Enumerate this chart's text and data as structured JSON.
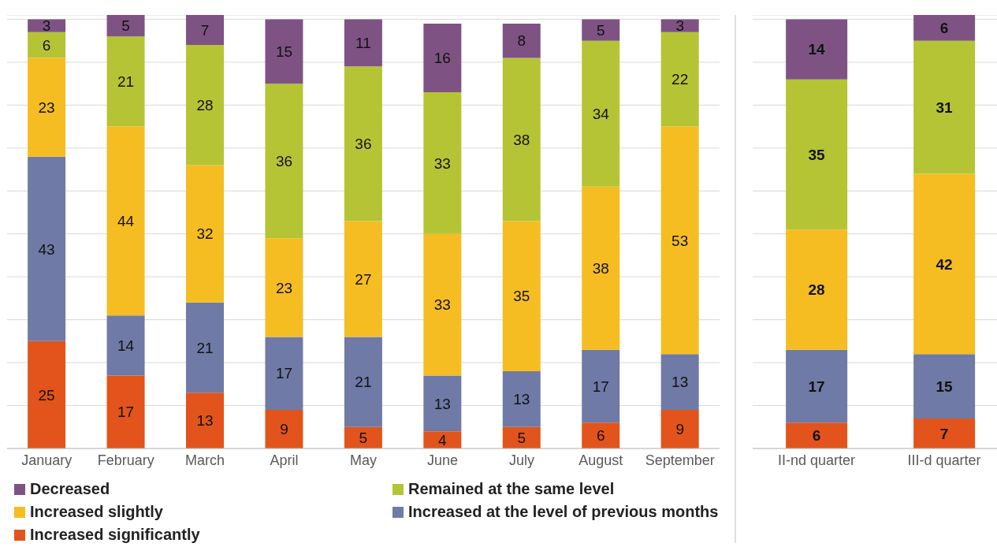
{
  "chart_data": [
    {
      "type": "bar",
      "stacked": true,
      "data_labels": true,
      "grid": "y",
      "legend": "bottom",
      "tick_labels": "x",
      "categories": [
        "January",
        "February",
        "March",
        "April",
        "May",
        "June",
        "July",
        "August",
        "September"
      ],
      "ylim": [
        0,
        101
      ],
      "yticks": [
        {
          "value": 0,
          "label": null
        },
        {
          "value": 10,
          "label": null
        },
        {
          "value": 20,
          "label": null
        },
        {
          "value": 30,
          "label": null
        },
        {
          "value": 40,
          "label": null
        },
        {
          "value": 50,
          "label": null
        },
        {
          "value": 60,
          "label": null
        },
        {
          "value": 70,
          "label": null
        },
        {
          "value": 80,
          "label": null
        },
        {
          "value": 90,
          "label": null
        },
        {
          "value": 100,
          "label": null
        }
      ],
      "series": [
        {
          "name": "Increased significantly",
          "color": "#e2541b",
          "values": [
            25,
            17,
            13,
            9,
            5,
            4,
            5,
            6,
            9
          ]
        },
        {
          "name": "Increased at the level of previous months",
          "color": "#6f7aa6",
          "values": [
            43,
            14,
            21,
            17,
            21,
            13,
            13,
            17,
            13
          ]
        },
        {
          "name": "Increased slightly",
          "color": "#f5bd22",
          "values": [
            23,
            44,
            32,
            23,
            27,
            33,
            35,
            38,
            53
          ]
        },
        {
          "name": "Remained at the same level",
          "color": "#b5c435",
          "values": [
            6,
            21,
            28,
            36,
            36,
            33,
            38,
            34,
            22
          ]
        },
        {
          "name": "Decreased",
          "color": "#7e5384",
          "values": [
            3,
            5,
            7,
            15,
            11,
            16,
            8,
            5,
            3
          ]
        }
      ]
    },
    {
      "type": "bar",
      "stacked": true,
      "data_labels": true,
      "grid": "y",
      "tick_labels": "x",
      "categories": [
        "II-nd quarter",
        "III-d quarter"
      ],
      "ylim": [
        0,
        101
      ],
      "yticks": [
        {
          "value": 0,
          "label": null
        },
        {
          "value": 10,
          "label": null
        },
        {
          "value": 20,
          "label": null
        },
        {
          "value": 30,
          "label": null
        },
        {
          "value": 40,
          "label": null
        },
        {
          "value": 50,
          "label": null
        },
        {
          "value": 60,
          "label": null
        },
        {
          "value": 70,
          "label": null
        },
        {
          "value": 80,
          "label": null
        },
        {
          "value": 90,
          "label": null
        },
        {
          "value": 100,
          "label": null
        }
      ],
      "series": [
        {
          "color": "#e2541b",
          "values": [
            6,
            7
          ]
        },
        {
          "color": "#6f7aa6",
          "values": [
            17,
            15
          ]
        },
        {
          "color": "#f5bd22",
          "values": [
            28,
            42
          ]
        },
        {
          "color": "#b5c435",
          "values": [
            35,
            31
          ]
        },
        {
          "color": "#7e5384",
          "values": [
            14,
            6
          ]
        }
      ]
    }
  ]
}
